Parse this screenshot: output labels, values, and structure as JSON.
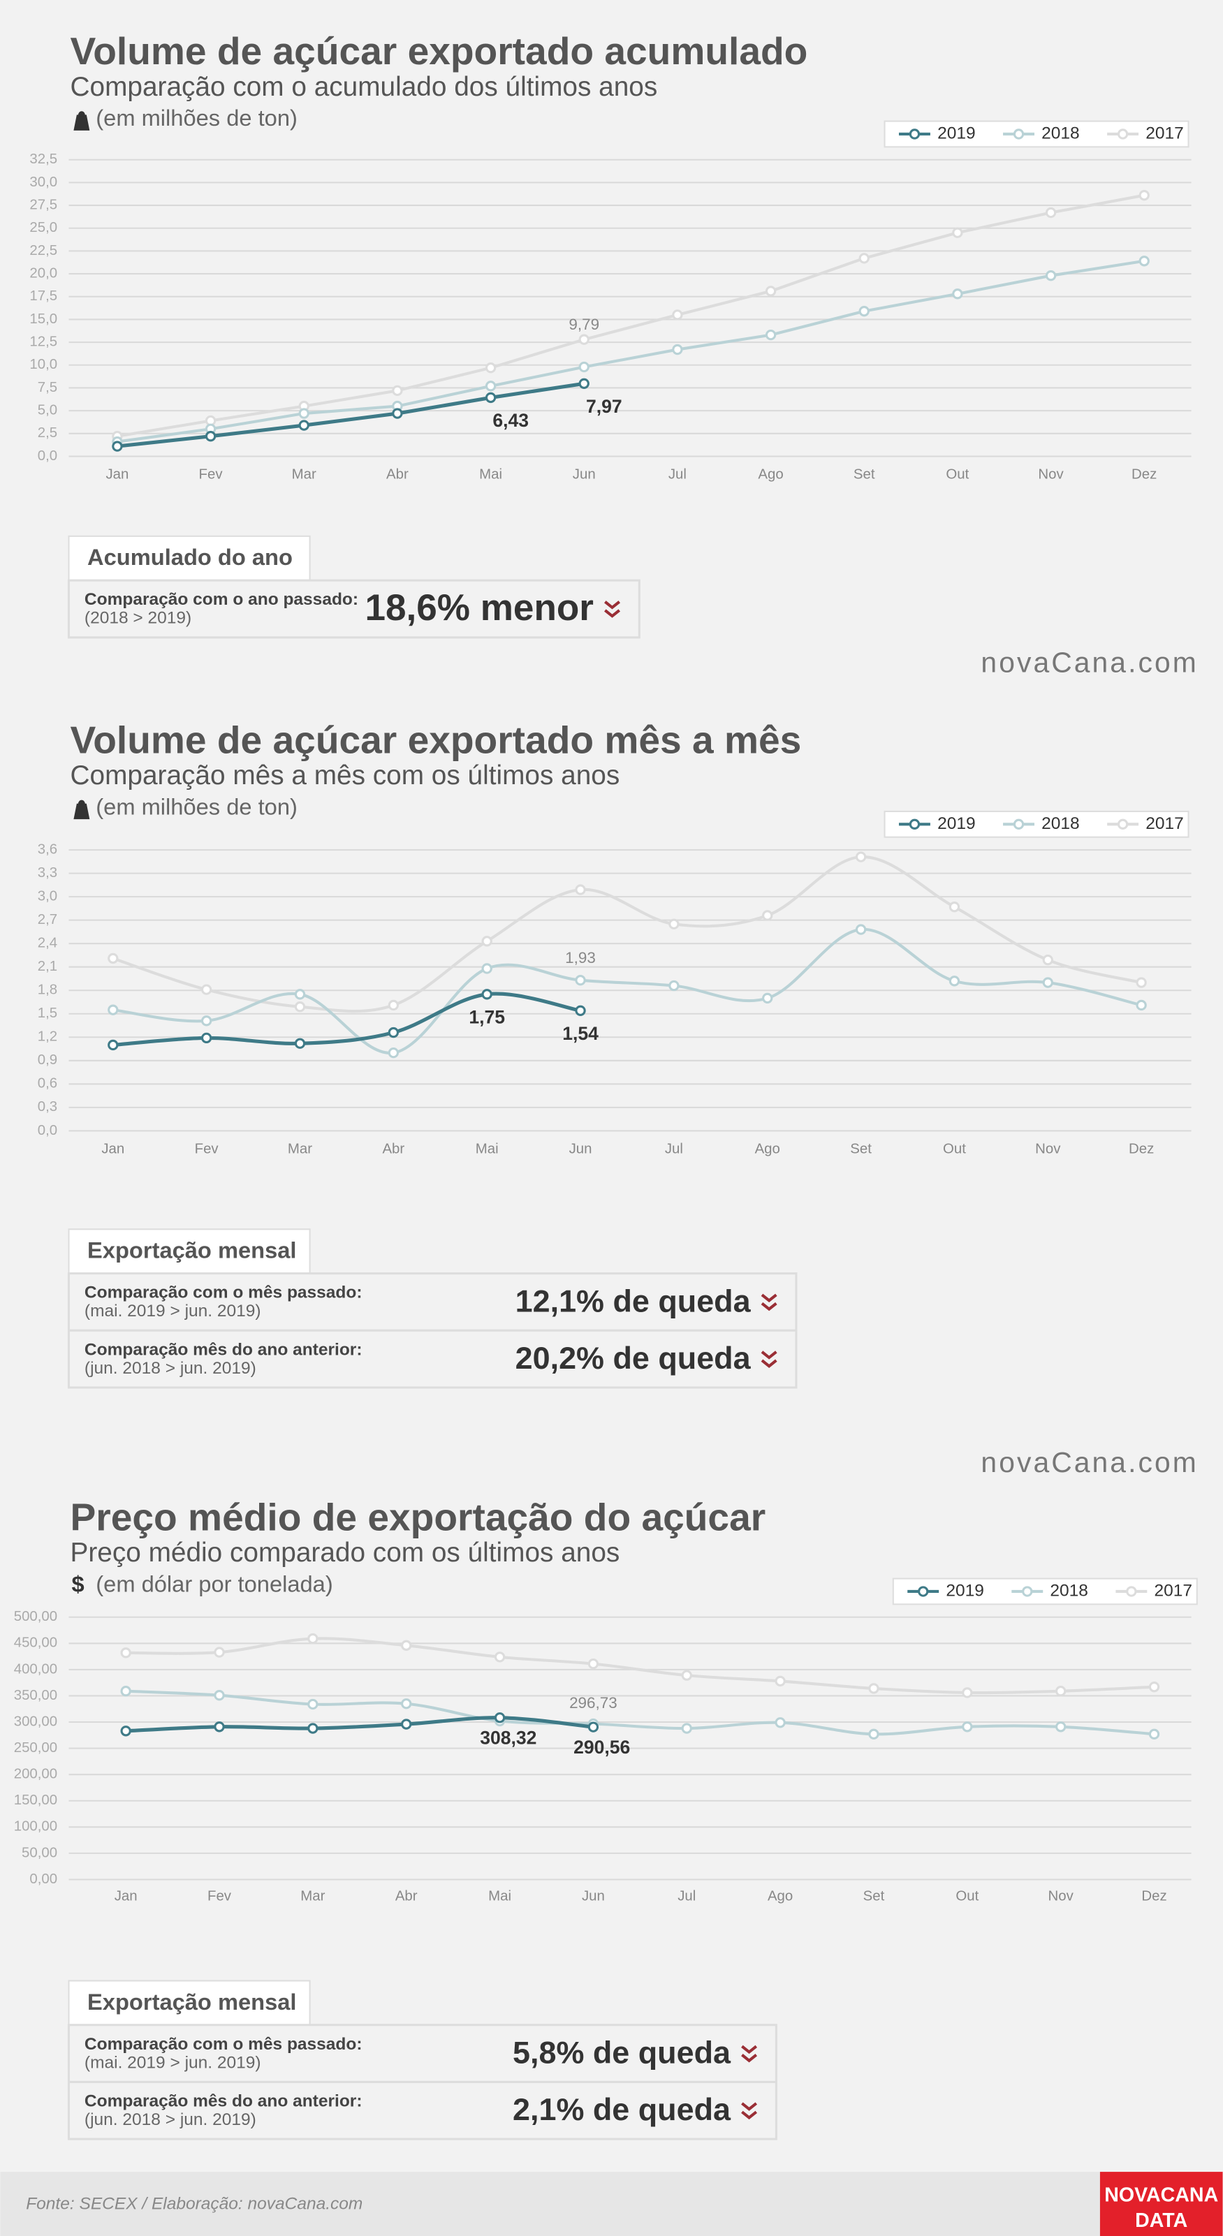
{
  "chart_data": [
    {
      "type": "line",
      "smooth": false,
      "title": "Volume de açúcar exportado acumulado",
      "subtitle": "Comparação com o acumulado dos últimos anos",
      "unit": "(em milhões de ton)",
      "categories": [
        "Jan",
        "Fev",
        "Mar",
        "Abr",
        "Mai",
        "Jun",
        "Jul",
        "Ago",
        "Set",
        "Out",
        "Nov",
        "Dez"
      ],
      "series": [
        {
          "name": "2019",
          "color": "#3e7a87",
          "values": [
            1.1,
            2.2,
            3.4,
            4.7,
            6.43,
            7.97,
            null,
            null,
            null,
            null,
            null,
            null
          ],
          "value_labels": [
            null,
            null,
            null,
            null,
            "6,43",
            "7,97",
            null,
            null,
            null,
            null,
            null,
            null
          ]
        },
        {
          "name": "2018",
          "color": "#b9d2d6",
          "values": [
            1.6,
            3.0,
            4.7,
            5.5,
            7.7,
            9.79,
            11.7,
            13.3,
            15.9,
            17.8,
            19.8,
            21.4
          ],
          "value_labels": [
            null,
            null,
            null,
            null,
            null,
            "9,79",
            null,
            null,
            null,
            null,
            null,
            null
          ]
        },
        {
          "name": "2017",
          "color": "#dcdcdc",
          "values": [
            2.2,
            3.9,
            5.5,
            7.2,
            9.7,
            12.8,
            15.5,
            18.1,
            21.7,
            24.5,
            26.7,
            28.6
          ]
        }
      ],
      "ylim": [
        0,
        32.5
      ],
      "yticks": [
        {
          "value": 0,
          "label": "0,0"
        },
        {
          "value": 2.5,
          "label": "2,5"
        },
        {
          "value": 5,
          "label": "5,0"
        },
        {
          "value": 7.5,
          "label": "7,5"
        },
        {
          "value": 10,
          "label": "10,0"
        },
        {
          "value": 12.5,
          "label": "12,5"
        },
        {
          "value": 15,
          "label": "15,0"
        },
        {
          "value": 17.5,
          "label": "17,5"
        },
        {
          "value": 20,
          "label": "20,0"
        },
        {
          "value": 22.5,
          "label": "22,5"
        },
        {
          "value": 25,
          "label": "25,0"
        },
        {
          "value": 27.5,
          "label": "27,5"
        },
        {
          "value": 30,
          "label": "30,0"
        },
        {
          "value": 32.5,
          "label": "32,5"
        }
      ],
      "grid": true,
      "legend": "top-right"
    },
    {
      "type": "line",
      "smooth": true,
      "title": "Volume de açúcar exportado mês a mês",
      "subtitle": "Comparação mês a mês com os últimos anos",
      "unit": "(em milhões de ton)",
      "categories": [
        "Jan",
        "Fev",
        "Mar",
        "Abr",
        "Mai",
        "Jun",
        "Jul",
        "Ago",
        "Set",
        "Out",
        "Nov",
        "Dez"
      ],
      "series": [
        {
          "name": "2019",
          "color": "#3e7a87",
          "values": [
            1.1,
            1.19,
            1.12,
            1.26,
            1.75,
            1.54,
            null,
            null,
            null,
            null,
            null,
            null
          ],
          "value_labels": [
            null,
            null,
            null,
            null,
            "1,75",
            "1,54",
            null,
            null,
            null,
            null,
            null,
            null
          ]
        },
        {
          "name": "2018",
          "color": "#b9d2d6",
          "values": [
            1.55,
            1.41,
            1.75,
            1.0,
            2.08,
            1.93,
            1.86,
            1.7,
            2.58,
            1.92,
            1.9,
            1.61
          ],
          "value_labels": [
            null,
            null,
            null,
            null,
            null,
            "1,93",
            null,
            null,
            null,
            null,
            null,
            null
          ]
        },
        {
          "name": "2017",
          "color": "#dcdcdc",
          "values": [
            2.21,
            1.81,
            1.59,
            1.61,
            2.43,
            3.09,
            2.65,
            2.76,
            3.51,
            2.87,
            2.19,
            1.9
          ]
        }
      ],
      "ylim": [
        0,
        3.6
      ],
      "yticks": [
        {
          "value": 0,
          "label": "0,0"
        },
        {
          "value": 0.3,
          "label": "0,3"
        },
        {
          "value": 0.6,
          "label": "0,6"
        },
        {
          "value": 0.9,
          "label": "0,9"
        },
        {
          "value": 1.2,
          "label": "1,2"
        },
        {
          "value": 1.5,
          "label": "1,5"
        },
        {
          "value": 1.8,
          "label": "1,8"
        },
        {
          "value": 2.1,
          "label": "2,1"
        },
        {
          "value": 2.4,
          "label": "2,4"
        },
        {
          "value": 2.7,
          "label": "2,7"
        },
        {
          "value": 3,
          "label": "3,0"
        },
        {
          "value": 3.3,
          "label": "3,3"
        },
        {
          "value": 3.6,
          "label": "3,6"
        }
      ],
      "grid": true,
      "legend": "top-right"
    },
    {
      "type": "line",
      "smooth": true,
      "title": "Preço médio de exportação do açúcar",
      "subtitle": "Preço médio comparado com os últimos anos",
      "unit_symbol": "$",
      "unit": "(em dólar por tonelada)",
      "categories": [
        "Jan",
        "Fev",
        "Mar",
        "Abr",
        "Mai",
        "Jun",
        "Jul",
        "Ago",
        "Set",
        "Out",
        "Nov",
        "Dez"
      ],
      "series": [
        {
          "name": "2019",
          "color": "#3e7a87",
          "values": [
            283,
            291,
            288,
            296,
            308.32,
            290.56,
            null,
            null,
            null,
            null,
            null,
            null
          ],
          "value_labels": [
            null,
            null,
            null,
            null,
            "308,32",
            "290,56",
            null,
            null,
            null,
            null,
            null,
            null
          ]
        },
        {
          "name": "2018",
          "color": "#b9d2d6",
          "values": [
            359,
            351,
            334,
            335,
            302,
            296.73,
            288,
            299,
            277,
            291,
            291,
            277
          ],
          "value_labels": [
            null,
            null,
            null,
            null,
            null,
            "296,73",
            null,
            null,
            null,
            null,
            null,
            null
          ]
        },
        {
          "name": "2017",
          "color": "#dcdcdc",
          "values": [
            432,
            433,
            459,
            446,
            424,
            411,
            389,
            378,
            364,
            356,
            359,
            367
          ]
        }
      ],
      "ylim": [
        0,
        500
      ],
      "yticks": [
        {
          "value": 0,
          "label": "0,00"
        },
        {
          "value": 50,
          "label": "50,00"
        },
        {
          "value": 100,
          "label": "100,00"
        },
        {
          "value": 150,
          "label": "150,00"
        },
        {
          "value": 200,
          "label": "200,00"
        },
        {
          "value": 250,
          "label": "250,00"
        },
        {
          "value": 300,
          "label": "300,00"
        },
        {
          "value": 350,
          "label": "350,00"
        },
        {
          "value": 400,
          "label": "400,00"
        },
        {
          "value": 450,
          "label": "450,00"
        },
        {
          "value": 500,
          "label": "500,00"
        }
      ],
      "grid": true,
      "legend": "top-right"
    }
  ],
  "panels": [
    {
      "tab": "Acumulado do ano",
      "rows": [
        {
          "label": "Comparação com o ano passado:",
          "sub": "(2018 > 2019)",
          "value": "18,6% menor"
        }
      ]
    },
    {
      "tab": "Exportação mensal",
      "rows": [
        {
          "label": "Comparação com o mês passado:",
          "sub": "(mai. 2019 > jun. 2019)",
          "value": "12,1% de queda"
        },
        {
          "label": "Comparação mês do ano anterior:",
          "sub": "(jun. 2018 > jun. 2019)",
          "value": "20,2% de queda"
        }
      ]
    },
    {
      "tab": "Exportação mensal",
      "rows": [
        {
          "label": "Comparação com o mês passado:",
          "sub": "(mai. 2019 > jun. 2019)",
          "value": "5,8% de queda"
        },
        {
          "label": "Comparação mês do ano anterior:",
          "sub": "(jun. 2018 > jun. 2019)",
          "value": "2,1% de queda"
        }
      ]
    }
  ],
  "brand": [
    "novaCana.com",
    "novaCana.com"
  ],
  "footer": {
    "source": "Fonte: SECEX  / Elaboração: novaCana.com",
    "logo": [
      "NOVACANA",
      "DATA"
    ]
  }
}
